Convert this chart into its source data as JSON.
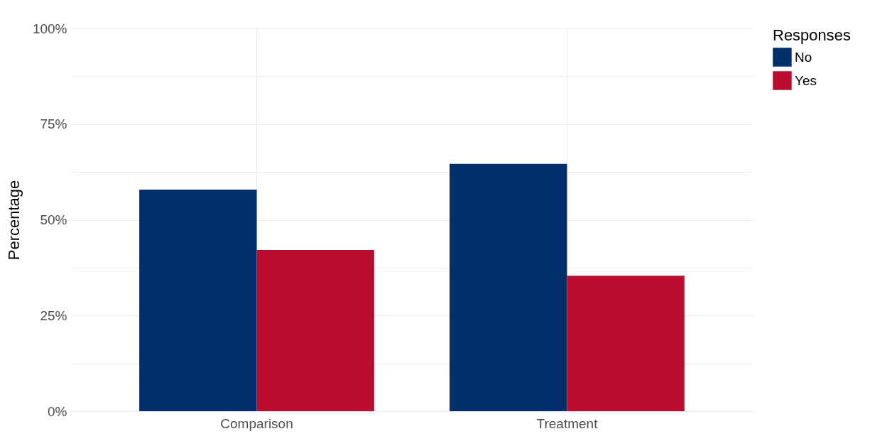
{
  "chart_data": {
    "type": "bar",
    "ylabel": "Percentage",
    "legend_title": "Responses",
    "legend": "right",
    "grid": true,
    "categories": [
      "Comparison",
      "Treatment"
    ],
    "series": [
      {
        "name": "No",
        "color": "#002f6c",
        "values": [
          57.9,
          64.6
        ]
      },
      {
        "name": "Yes",
        "color": "#ba0c2f",
        "values": [
          42.1,
          35.4
        ]
      }
    ],
    "ylim": [
      0,
      100
    ],
    "yticks": [
      {
        "value": 0,
        "label": "0%"
      },
      {
        "value": 12.5,
        "label": null
      },
      {
        "value": 25,
        "label": "25%"
      },
      {
        "value": 37.5,
        "label": null
      },
      {
        "value": 50,
        "label": "50%"
      },
      {
        "value": 62.5,
        "label": null
      },
      {
        "value": 75,
        "label": "75%"
      },
      {
        "value": 87.5,
        "label": null
      },
      {
        "value": 100,
        "label": "100%"
      }
    ]
  }
}
